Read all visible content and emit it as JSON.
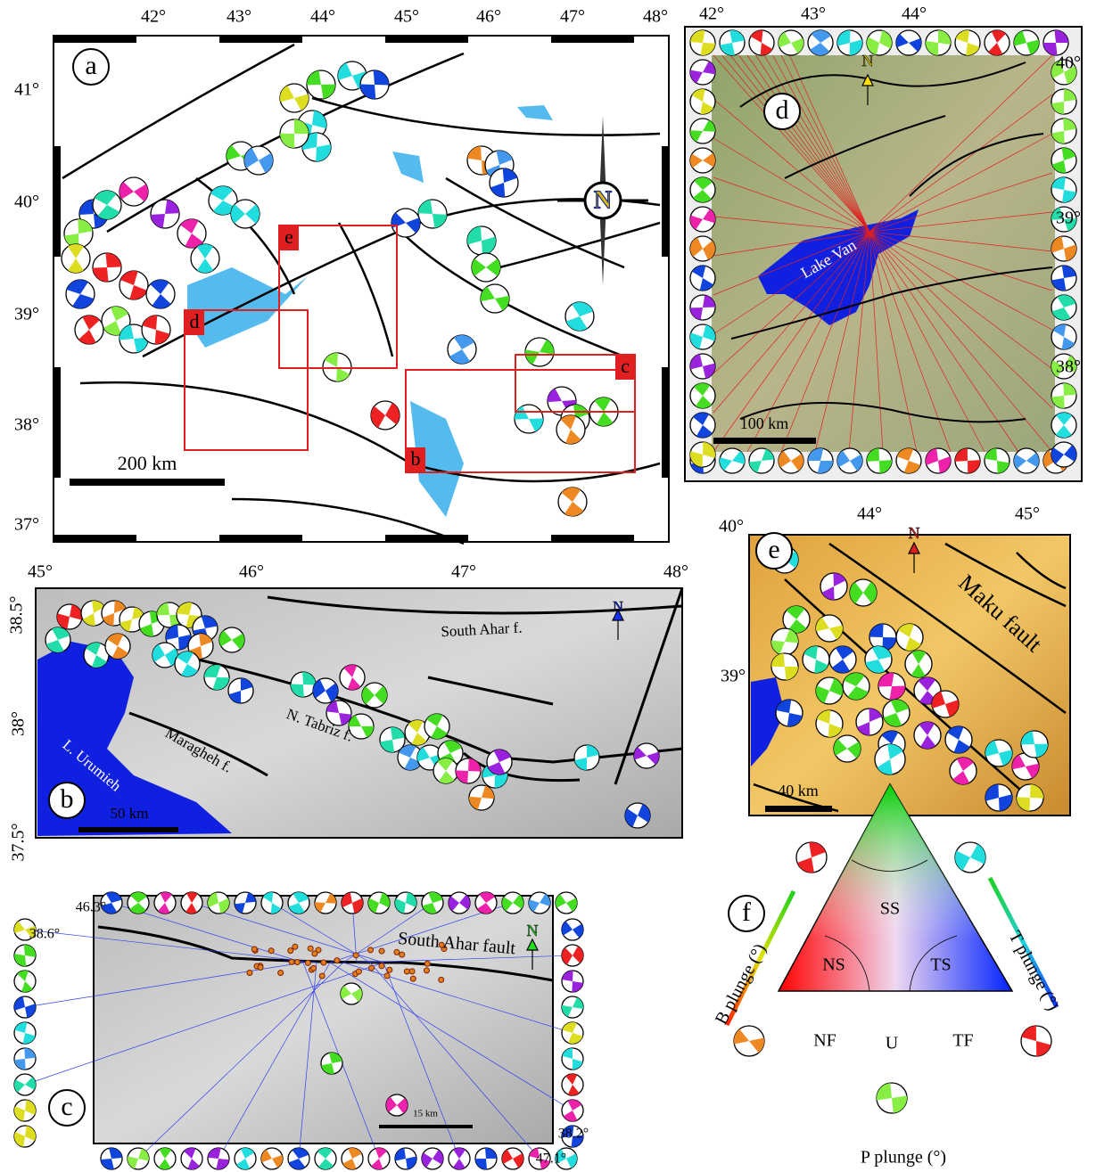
{
  "panel_a": {
    "label": "a",
    "lon_ticks": [
      "42°",
      "43°",
      "44°",
      "45°",
      "46°",
      "47°",
      "48°"
    ],
    "lat_ticks": [
      "41°",
      "40°",
      "39°",
      "38°",
      "37°"
    ],
    "scale_bar": "200 km",
    "north": "N",
    "boxes": [
      "d",
      "e",
      "b",
      "c"
    ]
  },
  "panel_b": {
    "label": "b",
    "lon_ticks": [
      "45°",
      "46°",
      "47°",
      "48°"
    ],
    "lat_ticks": [
      "38.5°",
      "38°",
      "37.5°"
    ],
    "faults": [
      "South Ahar f.",
      "N. Tabriz f.",
      "Maragheh f."
    ],
    "lake": "L. Urumieh",
    "scale_bar": "50 km",
    "north": "N"
  },
  "panel_c": {
    "label": "c",
    "corners": [
      "46.3°",
      "38.6°",
      "38.2°",
      "47.1°"
    ],
    "fault": "South Ahar fault",
    "scale_bar": "15 km",
    "north": "N"
  },
  "panel_d": {
    "label": "d",
    "lon_ticks": [
      "42°",
      "43°",
      "44°"
    ],
    "lat_ticks": [
      "40°",
      "39°",
      "38°"
    ],
    "lake": "Lake Van",
    "scale_bar": "100 km",
    "north": "N"
  },
  "panel_e": {
    "label": "e",
    "lon_ticks": [
      "44°",
      "45°"
    ],
    "lat_ticks": [
      "40°",
      "39°"
    ],
    "fault": "Maku fault",
    "scale_bar": "40 km",
    "north": "N"
  },
  "panel_f": {
    "label": "f",
    "classes": [
      "SS",
      "NS",
      "TS",
      "NF",
      "U",
      "TF"
    ],
    "axes": [
      "B plunge (°)",
      "T plunge (°)",
      "P plunge (°)"
    ]
  }
}
